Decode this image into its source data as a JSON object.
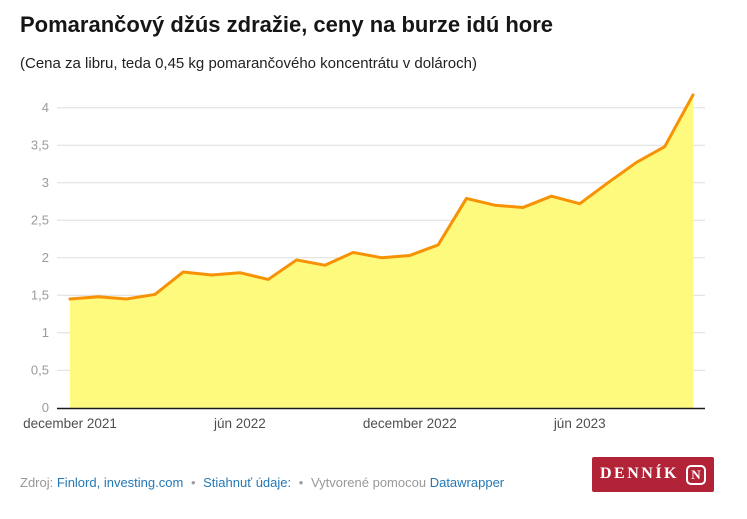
{
  "header": {
    "title": "Pomarančový džús zdražie, ceny na burze idú hore",
    "subtitle": "(Cena za libru, teda 0,45 kg pomarančového koncentrátu v dolároch)"
  },
  "chart_data": {
    "type": "area",
    "title": "Pomarančový džús zdražie, ceny na burze idú hore",
    "subtitle": "(Cena za libru, teda 0,45 kg pomarančového koncentrátu v dolároch)",
    "x": [
      "december 2021",
      "január 2022",
      "február 2022",
      "marec 2022",
      "apríl 2022",
      "máj 2022",
      "jún 2022",
      "júl 2022",
      "august 2022",
      "september 2022",
      "október 2022",
      "november 2022",
      "december 2022",
      "január 2023",
      "február 2023",
      "marec 2023",
      "apríl 2023",
      "máj 2023",
      "jún 2023",
      "júl 2023",
      "august 2023",
      "september 2023",
      "október 2023"
    ],
    "values": [
      1.45,
      1.48,
      1.45,
      1.51,
      1.81,
      1.77,
      1.8,
      1.71,
      1.97,
      1.9,
      2.07,
      2.0,
      2.03,
      2.17,
      2.79,
      2.7,
      2.67,
      2.82,
      2.72,
      3.0,
      3.27,
      3.48,
      4.17
    ],
    "x_ticks": [
      [
        0,
        "december 2021"
      ],
      [
        6,
        "jún 2022"
      ],
      [
        12,
        "december 2022"
      ],
      [
        18,
        "jún 2023"
      ]
    ],
    "y_ticks": [
      [
        0,
        "0"
      ],
      [
        0.5,
        "0,5"
      ],
      [
        1,
        "1"
      ],
      [
        1.5,
        "1,5"
      ],
      [
        2,
        "2"
      ],
      [
        2.5,
        "2,5"
      ],
      [
        3,
        "3"
      ],
      [
        3.5,
        "3,5"
      ],
      [
        4,
        "4"
      ]
    ],
    "ylim": [
      0,
      4.2
    ],
    "grid": "horizontal",
    "legend": "none",
    "line_color": "#f79205",
    "fill_color": "#fdfa7e",
    "axis_color": "#1a1a1a",
    "grid_color": "#dedede",
    "y_label_color": "#9b9b9b",
    "x_label_color": "#4f4f4f"
  },
  "footer": {
    "source_label": "Zdroj:",
    "source_links": "Finlord, investing.com",
    "separator": "•",
    "download_link": "Stiahnuť údaje:",
    "made_with": "Vytvorené pomocou",
    "tool_link": "Datawrapper"
  },
  "logo": {
    "word": "DENNÍK",
    "letter": "N"
  }
}
